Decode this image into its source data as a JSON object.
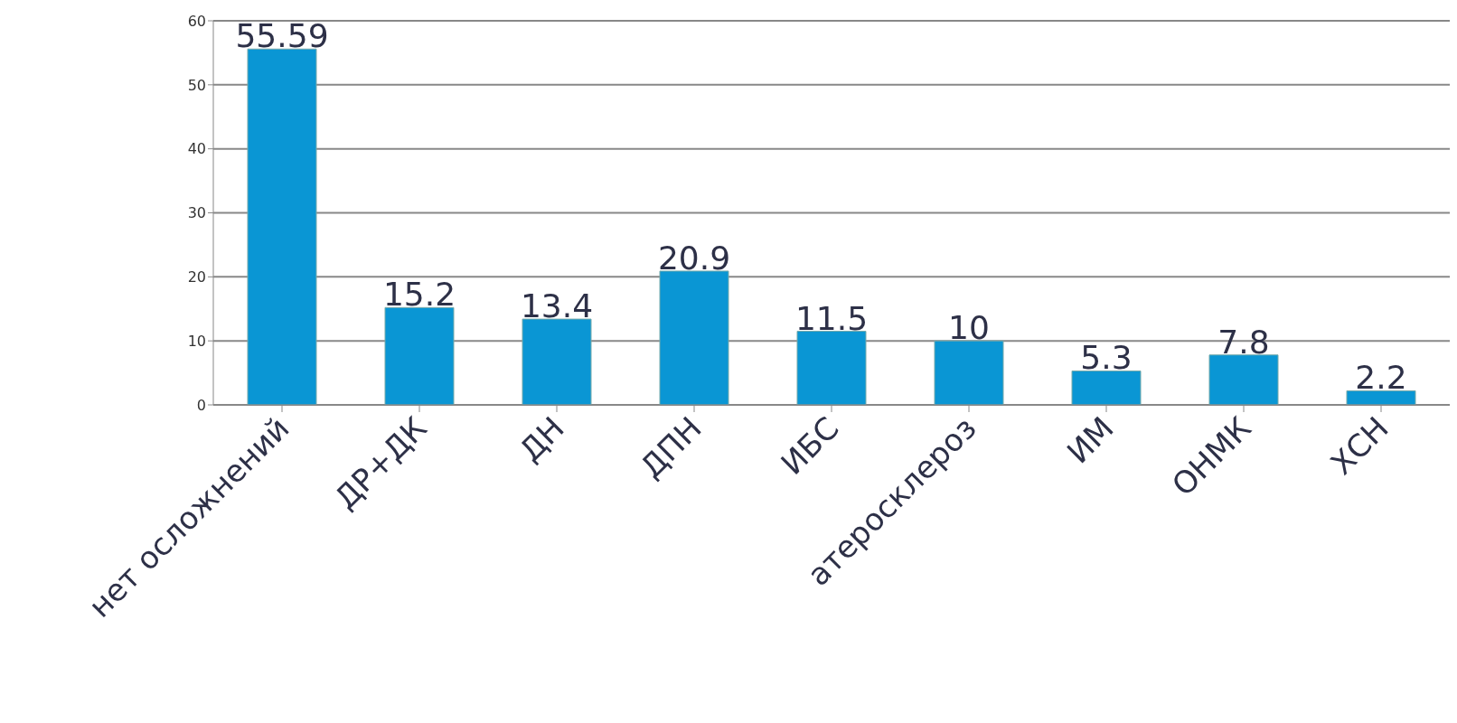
{
  "chart_data": {
    "type": "bar",
    "categories": [
      "нет осложнений",
      "ДР+ДК",
      "ДН",
      "ДПН",
      "ИБС",
      "атеросклероз",
      "ИМ",
      "ОНМК",
      "ХСН"
    ],
    "values": [
      55.59,
      15.2,
      13.4,
      20.9,
      11.5,
      10,
      5.3,
      7.8,
      2.2
    ],
    "color": "#0a96d4",
    "ylim": [
      0,
      60
    ],
    "yticks": [
      0,
      10,
      20,
      30,
      40,
      50,
      60
    ],
    "grid": "y",
    "data_labels": true,
    "legend": false
  }
}
